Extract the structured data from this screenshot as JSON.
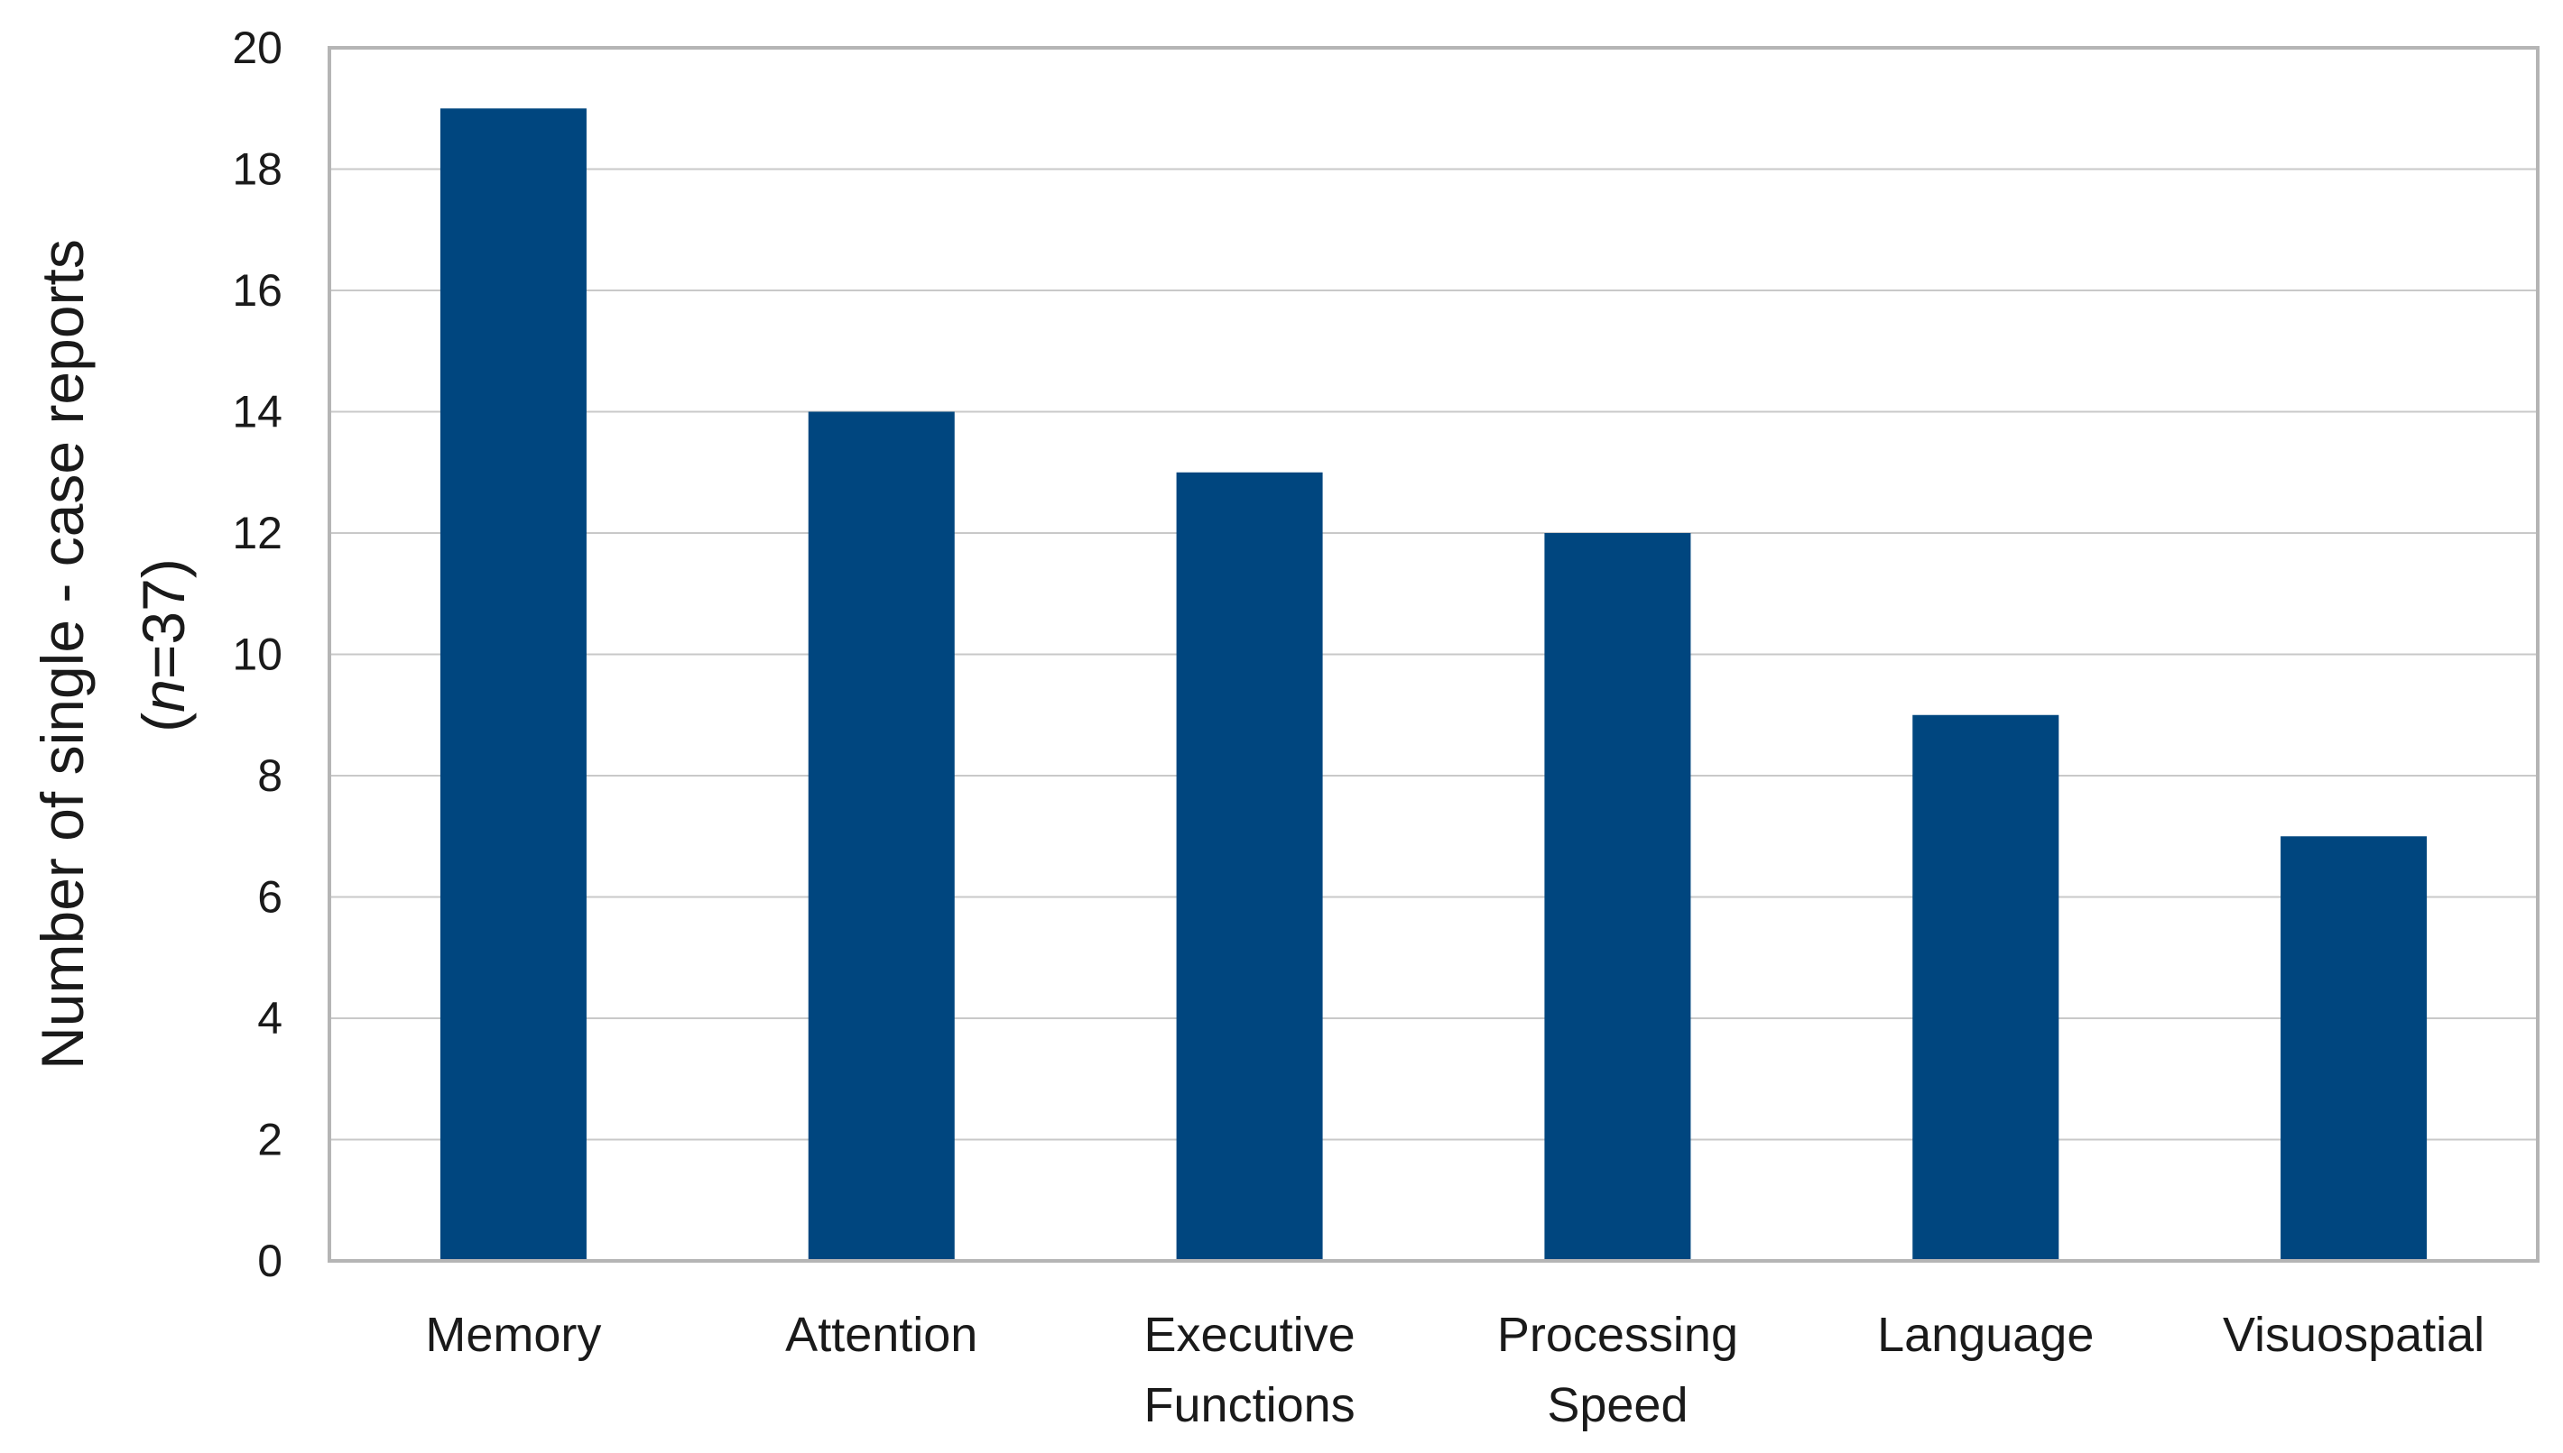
{
  "chart_data": {
    "type": "bar",
    "title": "",
    "xlabel": "",
    "ylabel": "Number of single - case reports",
    "ylabel_sub": {
      "italic": "n",
      "rest": "=37)",
      "open": "("
    },
    "categories": [
      [
        "Memory"
      ],
      [
        "Attention"
      ],
      [
        "Executive",
        "Functions"
      ],
      [
        "Processing",
        "Speed"
      ],
      [
        "Language"
      ],
      [
        "Visuospatial"
      ]
    ],
    "values": [
      19,
      14,
      13,
      12,
      9,
      7
    ],
    "ylim": [
      0,
      20
    ],
    "yticks": [
      0,
      2,
      4,
      6,
      8,
      10,
      12,
      14,
      16,
      18,
      20
    ],
    "grid": true,
    "legend": "none",
    "bar_color": "#00467f",
    "grid_color": "#c9c9c9",
    "axis_color": "#b5b5b5"
  }
}
